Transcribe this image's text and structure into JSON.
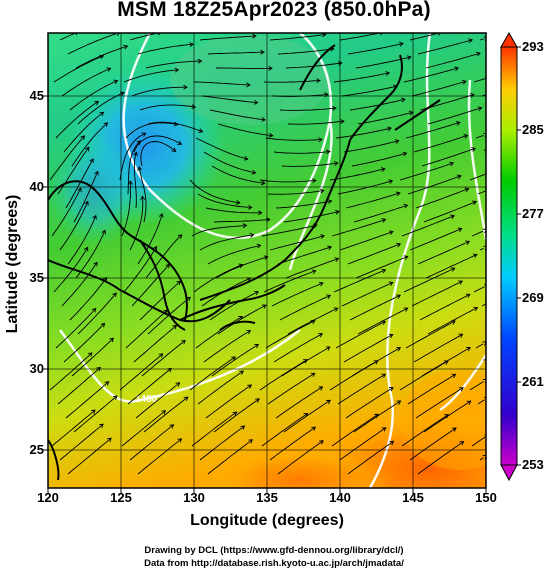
{
  "title": "MSM 18Z25Apr2023 (850.0hPa)",
  "map": {
    "xlabel": "Longitude (degrees)",
    "ylabel": "Latitude  (degrees)",
    "xticks": [
      "120",
      "125",
      "130",
      "135",
      "140",
      "145",
      "150"
    ],
    "yticks": [
      "45",
      "40",
      "35",
      "30",
      "25"
    ],
    "xlim": [
      120,
      150
    ],
    "ylim": [
      22.5,
      47.5
    ],
    "contour_label": "1480",
    "field": "temperature (K) with wind streamlines"
  },
  "colorbar": {
    "ticks": [
      "293",
      "285",
      "277",
      "269",
      "261",
      "253"
    ],
    "range": [
      253,
      293
    ],
    "colors": [
      "#cc00cc",
      "#0000cc",
      "#00aaff",
      "#00ddcc",
      "#00cc00",
      "#aaee00",
      "#ffcc00",
      "#ff4400"
    ]
  },
  "credits": {
    "line1": "Drawing by DCL (https://www.gfd-dennou.org/library/dcl/)",
    "line2": "Data from http://database.rish.kyoto-u.ac.jp/arch/jmadata/"
  }
}
